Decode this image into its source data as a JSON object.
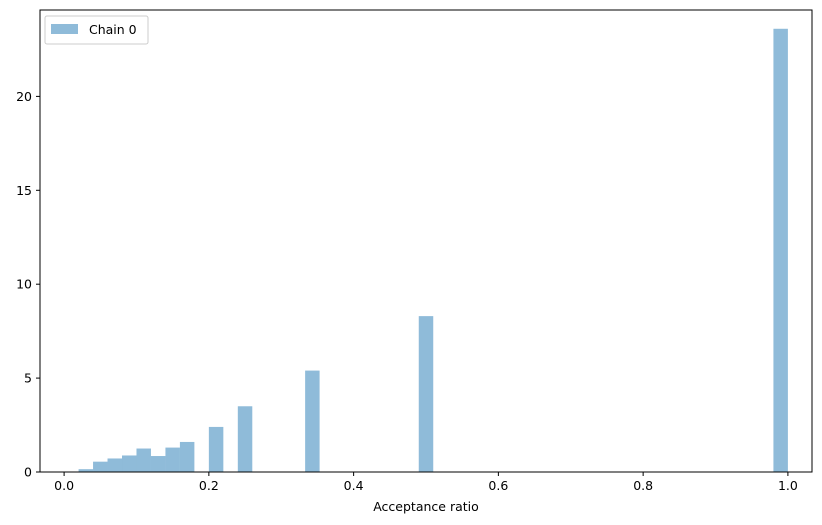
{
  "chart_data": {
    "type": "bar",
    "xlabel": "Acceptance ratio",
    "ylabel": "",
    "title": "",
    "xlim": [
      -0.0333,
      1.0333
    ],
    "ylim": [
      0,
      24.6
    ],
    "xticks": [
      0.0,
      0.2,
      0.4,
      0.6,
      0.8,
      1.0
    ],
    "xtick_labels": [
      "0.0",
      "0.2",
      "0.4",
      "0.6",
      "0.8",
      "1.0"
    ],
    "yticks": [
      0,
      5,
      10,
      15,
      20
    ],
    "ytick_labels": [
      "0",
      "5",
      "10",
      "15",
      "20"
    ],
    "bin_width": 0.02,
    "series": [
      {
        "name": "Chain 0",
        "color": "#1f77b4",
        "alpha": 0.5,
        "bins": [
          {
            "x0": 0.02,
            "x1": 0.04,
            "value": 0.15
          },
          {
            "x0": 0.04,
            "x1": 0.06,
            "value": 0.55
          },
          {
            "x0": 0.06,
            "x1": 0.08,
            "value": 0.72
          },
          {
            "x0": 0.08,
            "x1": 0.1,
            "value": 0.88
          },
          {
            "x0": 0.1,
            "x1": 0.12,
            "value": 1.25
          },
          {
            "x0": 0.12,
            "x1": 0.14,
            "value": 0.85
          },
          {
            "x0": 0.14,
            "x1": 0.16,
            "value": 1.3
          },
          {
            "x0": 0.16,
            "x1": 0.18,
            "value": 1.6
          },
          {
            "x0": 0.2,
            "x1": 0.22,
            "value": 2.4
          },
          {
            "x0": 0.24,
            "x1": 0.26,
            "value": 3.5
          },
          {
            "x0": 0.333,
            "x1": 0.353,
            "value": 5.4
          },
          {
            "x0": 0.49,
            "x1": 0.51,
            "value": 8.3
          },
          {
            "x0": 0.98,
            "x1": 1.0,
            "value": 23.6
          }
        ]
      }
    ],
    "legend": {
      "placement": "upper-left",
      "entries": [
        "Chain 0"
      ]
    },
    "grid": false
  }
}
